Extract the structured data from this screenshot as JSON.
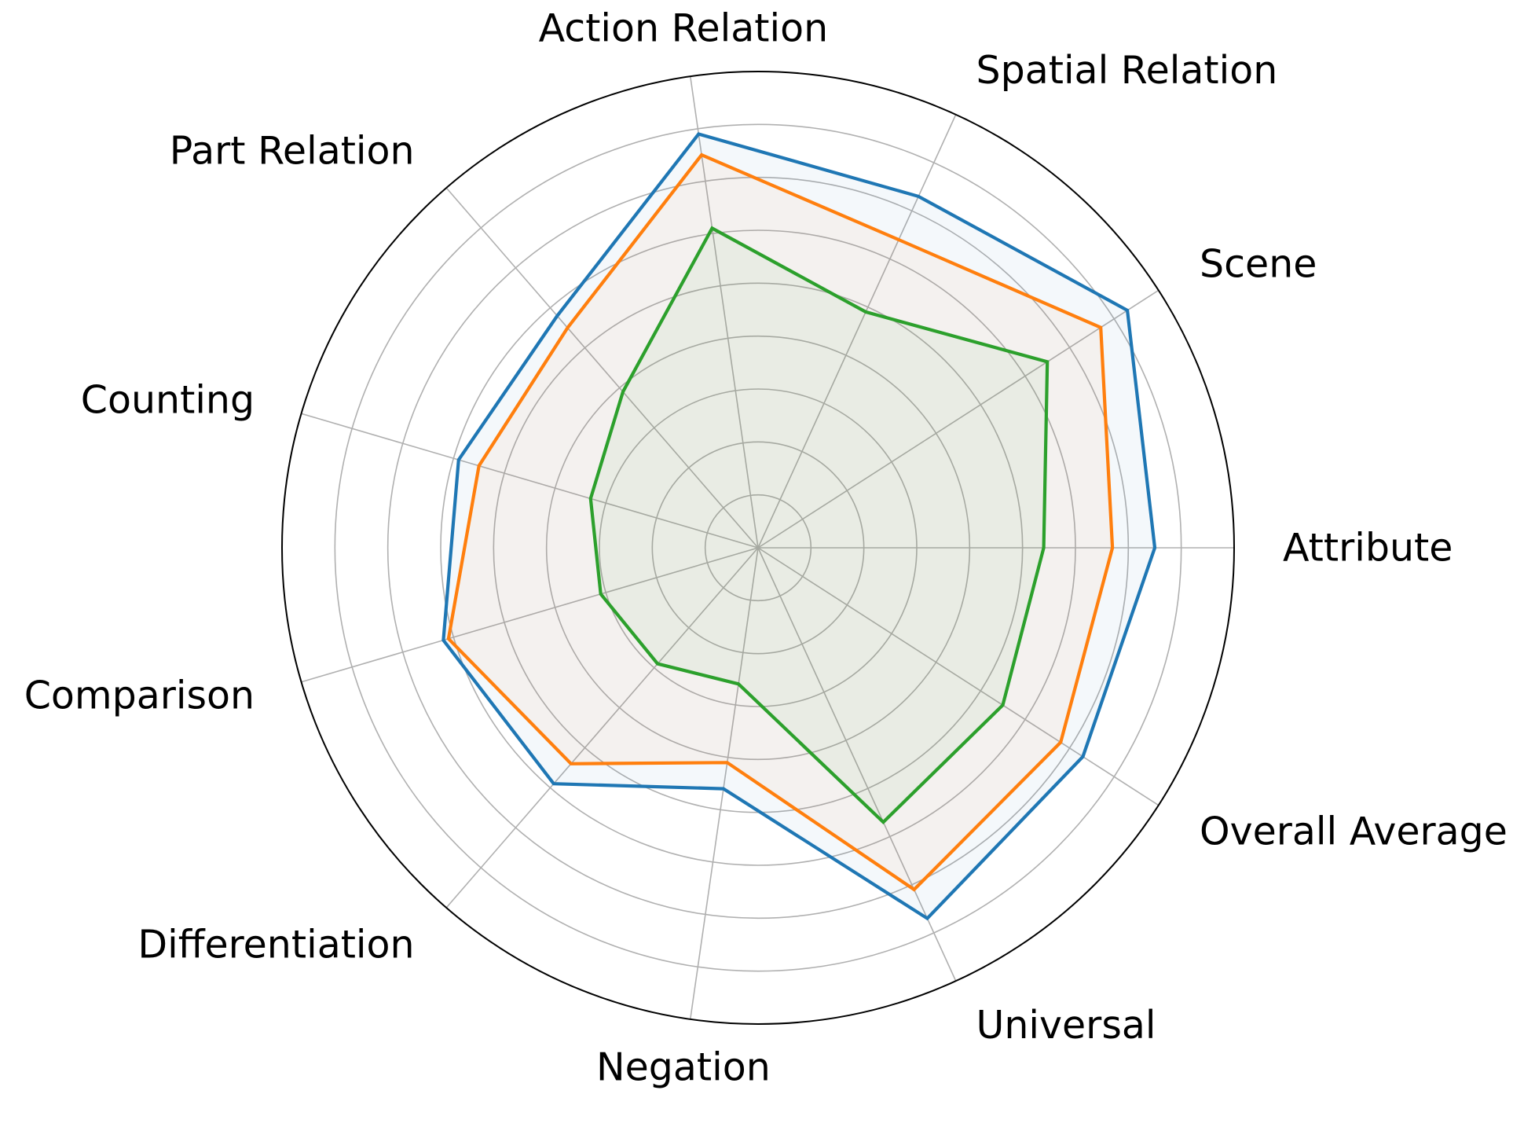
{
  "chart_data": {
    "type": "radar",
    "title": "",
    "categories": [
      "Attribute",
      "Scene",
      "Spatial Relation",
      "Action Relation",
      "Part Relation",
      "Counting",
      "Comparison",
      "Differentiation",
      "Negation",
      "Universal",
      "Overall Average"
    ],
    "rlim": [
      0,
      9
    ],
    "ring_count": 9,
    "grid": true,
    "legend": "none",
    "series": [
      {
        "color": "#1f77b4",
        "fill_opacity": 0.05,
        "values": [
          7.5,
          8.3,
          7.3,
          7.9,
          5.8,
          5.9,
          6.2,
          5.9,
          4.6,
          7.7,
          7.3
        ]
      },
      {
        "color": "#ff7f0e",
        "fill_opacity": 0.05,
        "values": [
          6.7,
          7.7,
          6.4,
          7.5,
          5.5,
          5.5,
          6.1,
          5.4,
          4.1,
          7.1,
          6.8
        ]
      },
      {
        "color": "#2ca02c",
        "fill_opacity": 0.05,
        "values": [
          5.4,
          6.5,
          4.9,
          6.1,
          3.9,
          3.3,
          3.1,
          2.9,
          2.6,
          5.7,
          5.5
        ]
      }
    ]
  }
}
